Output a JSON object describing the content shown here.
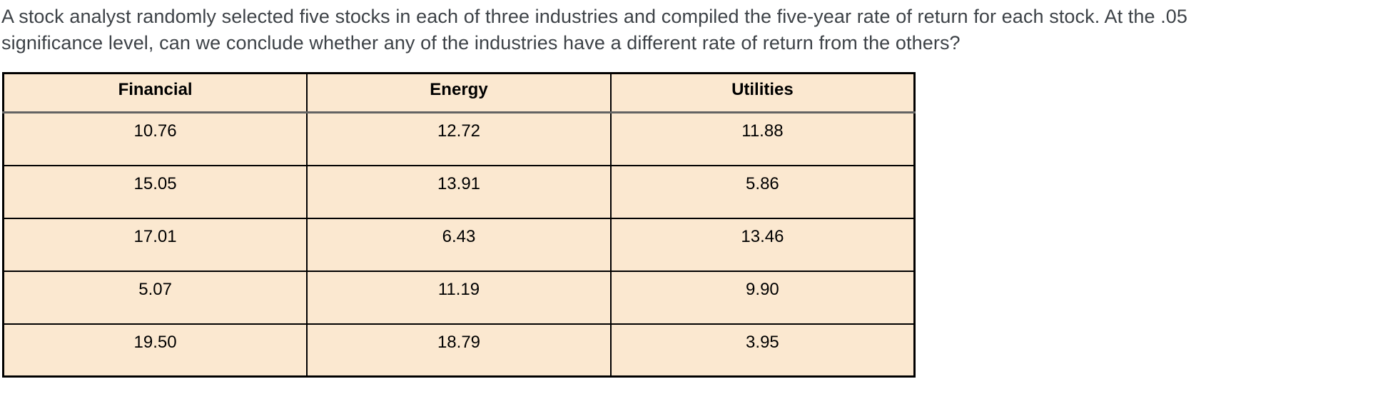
{
  "question": {
    "line1": "A stock analyst randomly selected five stocks in each of three industries and compiled the five-year rate of return for each stock. At the .05",
    "line2": "significance level, can we conclude whether any of the industries have a different rate of return from the others?"
  },
  "table": {
    "headers": [
      "Financial",
      "Energy",
      "Utilities"
    ],
    "rows": [
      [
        "10.76",
        "12.72",
        "11.88"
      ],
      [
        "15.05",
        "13.91",
        "5.86"
      ],
      [
        "17.01",
        "6.43",
        "13.46"
      ],
      [
        "5.07",
        "11.19",
        "9.90"
      ],
      [
        "19.50",
        "18.79",
        "3.95"
      ]
    ]
  },
  "colors": {
    "cell_background": "#fbe8d0",
    "table_border": "#000000",
    "header_divider": "#636363",
    "question_text": "#3d4247"
  }
}
